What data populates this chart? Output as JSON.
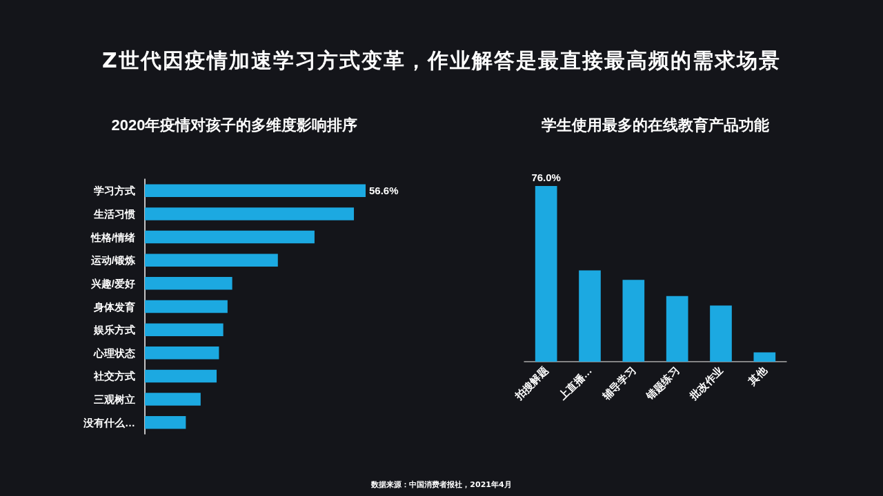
{
  "chart_data": [
    {
      "type": "other",
      "title": "Z世代因疫情加速学习方式变革，作业解答是最直接最高频的需求场景",
      "annotations": [
        "数据来源：中国消费者报社，2021年4月"
      ]
    },
    {
      "type": "bar",
      "orientation": "horizontal",
      "title": "2020年疫情对孩子的多维度影响排序",
      "color": "#1ca9e1",
      "categories": [
        "学习方式",
        "生活习惯",
        "性格/情绪",
        "运动/锻炼",
        "兴趣/爱好",
        "身体发育",
        "娱乐方式",
        "心理状态",
        "社交方式",
        "三观树立",
        "没有什么…"
      ],
      "values": [
        56.6,
        53.6,
        43.5,
        34.1,
        22.4,
        21.2,
        20.1,
        19.0,
        18.4,
        14.3,
        10.5
      ],
      "value_labels": [
        "56.6%",
        null,
        null,
        null,
        null,
        null,
        null,
        null,
        null,
        null,
        null
      ]
    },
    {
      "type": "bar",
      "title": "学生使用最多的在线教育产品功能",
      "color": "#1ca9e1",
      "categories": [
        "拍搜解题",
        "上直播…",
        "辅导学习",
        "错题练习",
        "批改作业",
        "其他"
      ],
      "values": [
        76.0,
        39.5,
        35.4,
        28.4,
        24.3,
        4.0
      ],
      "value_labels": [
        "76.0%",
        null,
        null,
        null,
        null,
        null
      ]
    }
  ]
}
